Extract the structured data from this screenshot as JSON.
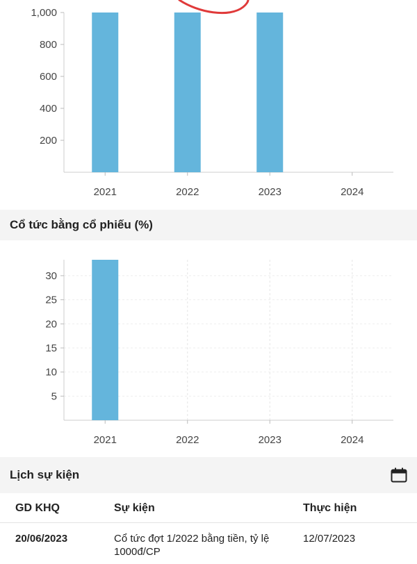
{
  "chart_data": [
    {
      "type": "bar",
      "categories": [
        "2021",
        "2022",
        "2023",
        "2024"
      ],
      "values": [
        1000,
        1000,
        1000,
        0
      ],
      "yticks": [
        200,
        400,
        600,
        800,
        1000
      ],
      "ytick_labels": [
        "200",
        "400",
        "600",
        "800",
        "1,000"
      ],
      "ylim": [
        0,
        1000
      ],
      "bar_color": "#64b5dc",
      "grid": false
    },
    {
      "type": "bar",
      "title": "Cổ tức bằng cổ phiếu (%)",
      "categories": [
        "2021",
        "2022",
        "2023",
        "2024"
      ],
      "values": [
        33.3,
        0,
        0,
        0
      ],
      "yticks": [
        5,
        10,
        15,
        20,
        25,
        30
      ],
      "ytick_labels": [
        "5",
        "10",
        "15",
        "20",
        "25",
        "30"
      ],
      "ylim": [
        0,
        33.3
      ],
      "bar_color": "#64b5dc",
      "grid": true
    }
  ],
  "events": {
    "title": "Lịch sự kiện",
    "calendar_icon": "calendar-icon",
    "columns": [
      "GD KHQ",
      "Sự kiện",
      "Thực hiện"
    ],
    "rows": [
      {
        "date": "20/06/2023",
        "event_line1": "Cổ tức đợt 1/2022 bằng tiền, tỷ lệ",
        "event_line2": "1000đ/CP",
        "done": "12/07/2023"
      }
    ]
  },
  "annotation_color": "#e03a3a"
}
